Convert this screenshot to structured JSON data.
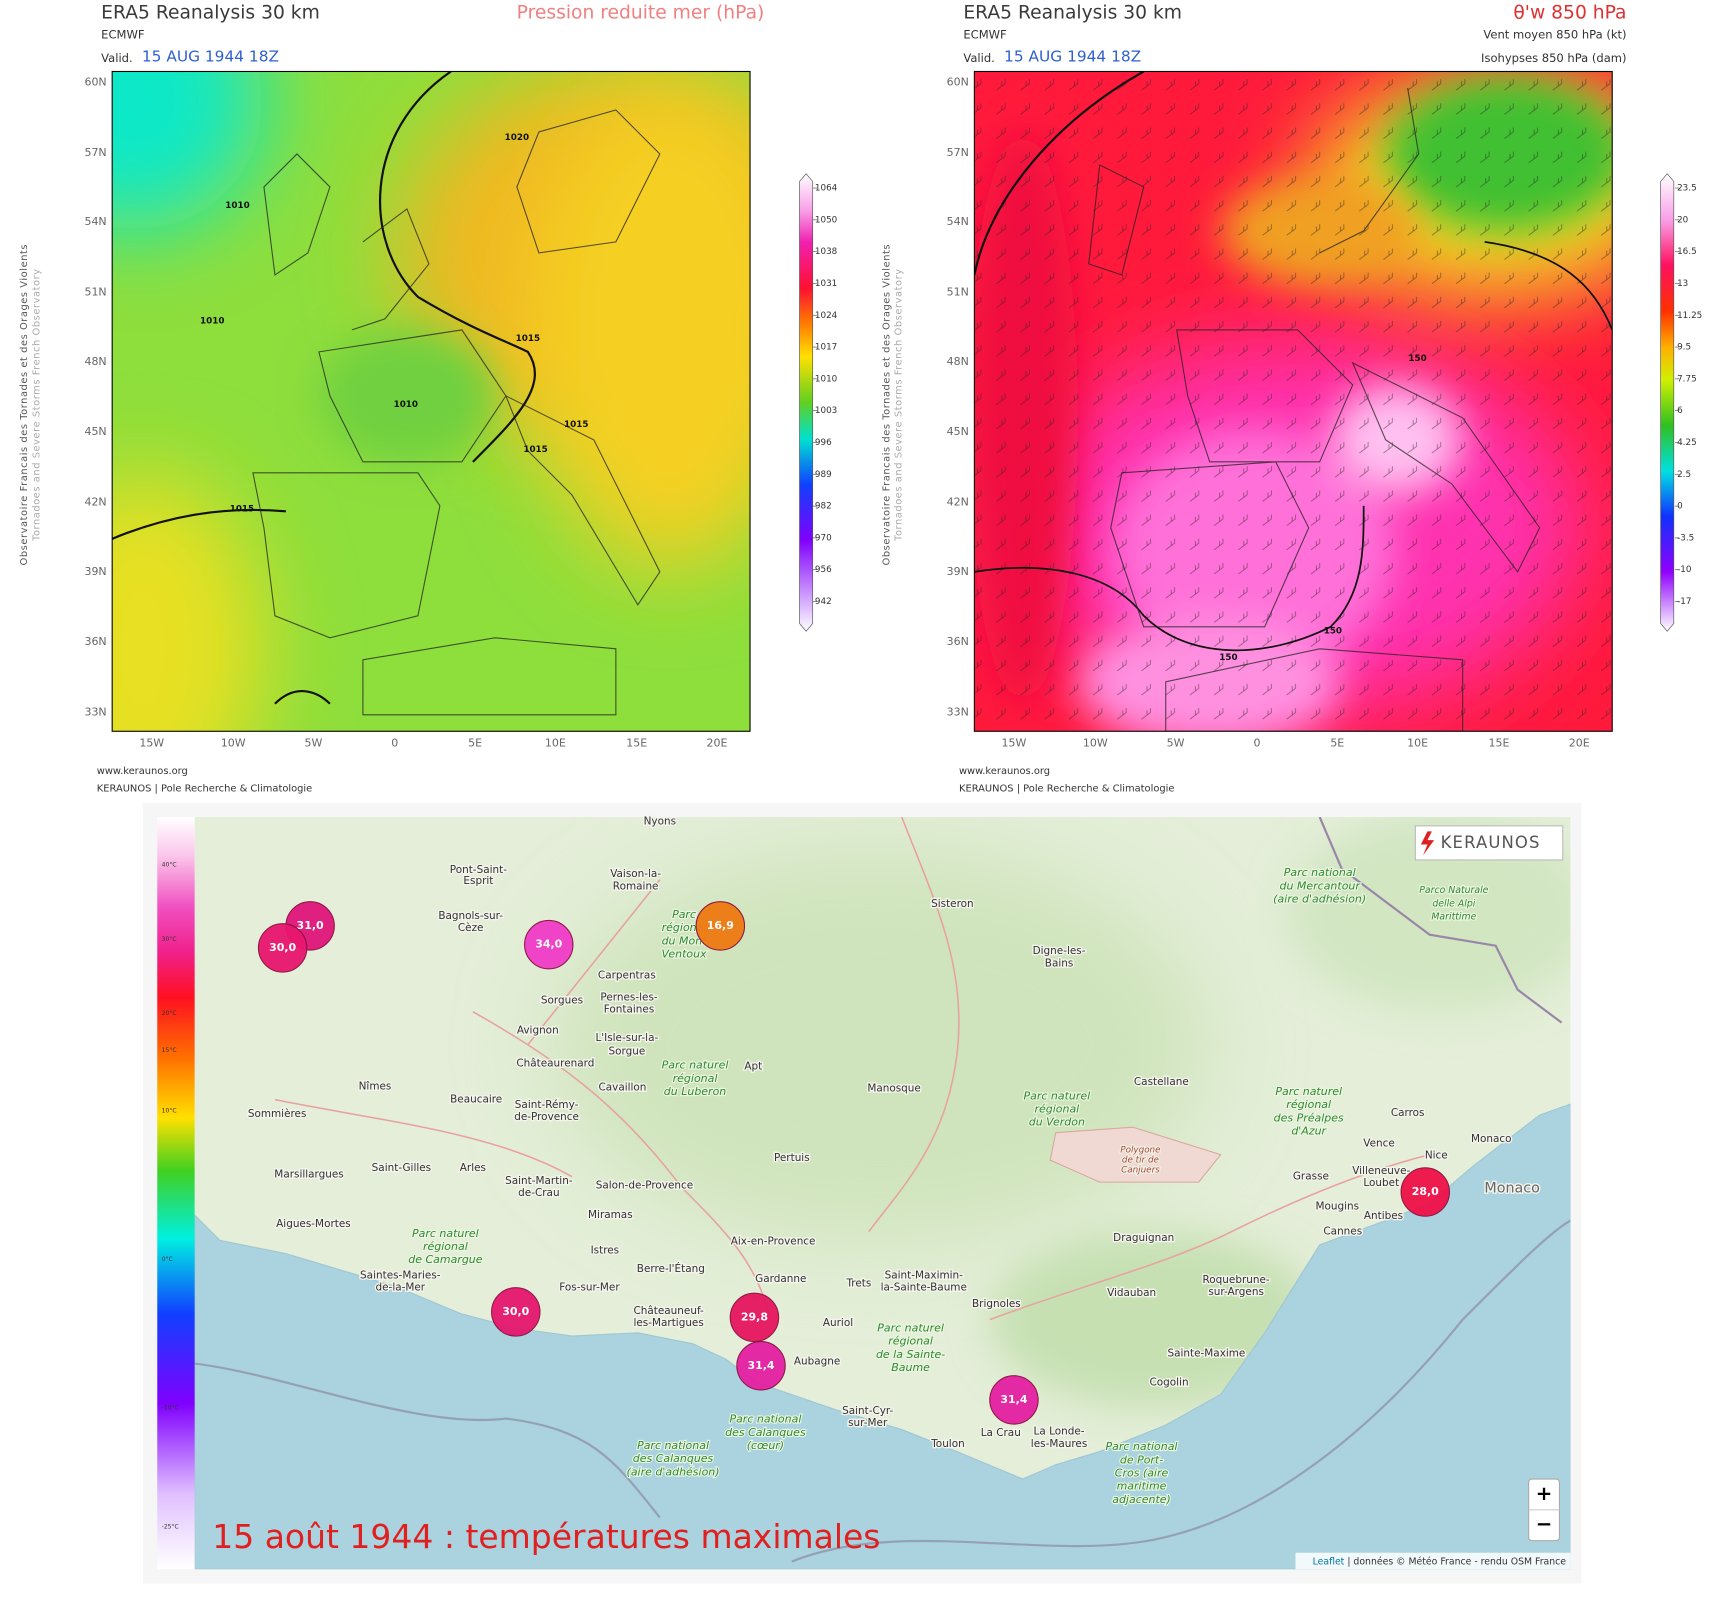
{
  "left_panel": {
    "title": "ERA5 Reanalysis 30 km",
    "field": "Pression reduite mer (hPa)",
    "source": "ECMWF",
    "valid_label": "Valid.",
    "valid_date": "15 AUG 1944 18Z",
    "side_credit": "Observatoire Francais des Tornades et des Orages Violents",
    "side_credit_en": "Tornadoes and Severe Storms French Observatory",
    "lat_labels": [
      "60N",
      "57N",
      "54N",
      "51N",
      "48N",
      "45N",
      "42N",
      "39N",
      "36N",
      "33N"
    ],
    "lon_labels": [
      "15W",
      "10W",
      "5W",
      "0",
      "5E",
      "10E",
      "15E",
      "20E"
    ],
    "colorbar_labels": [
      "1064",
      "1050",
      "1038",
      "1031",
      "1024",
      "1017",
      "1010",
      "1003",
      "996",
      "989",
      "982",
      "970",
      "956",
      "942"
    ],
    "contour_labels": [
      "1020",
      "1010",
      "1010",
      "1015",
      "1010",
      "1015",
      "1015",
      "1015"
    ],
    "footer_url": "www.keraunos.org",
    "footer_org": "KERAUNOS | Pole Recherche & Climatologie"
  },
  "right_panel": {
    "title": "ERA5 Reanalysis 30 km",
    "field": "θ'w 850 hPa",
    "source": "ECMWF",
    "valid_label": "Valid.",
    "valid_date": "15 AUG 1944 18Z",
    "subtitle_1": "Vent moyen 850 hPa (kt)",
    "subtitle_2": "Isohypses 850 hPa (dam)",
    "side_credit": "Observatoire Francais des Tornades et des Orages Violents",
    "side_credit_en": "Tornadoes and Severe Storms French Observatory",
    "lat_labels": [
      "60N",
      "57N",
      "54N",
      "51N",
      "48N",
      "45N",
      "42N",
      "39N",
      "36N",
      "33N"
    ],
    "lon_labels": [
      "15W",
      "10W",
      "5W",
      "0",
      "5E",
      "10E",
      "15E",
      "20E"
    ],
    "colorbar_labels": [
      "23.5",
      "20",
      "16.5",
      "13",
      "11.25",
      "9.5",
      "7.75",
      "6",
      "4.25",
      "2.5",
      "0",
      "-3.5",
      "-10",
      "-17"
    ],
    "contour_labels": [
      "150",
      "150",
      "150"
    ],
    "footer_url": "www.keraunos.org",
    "footer_org": "KERAUNOS | Pole Recherche & Climatologie"
  },
  "map": {
    "title": "15 août 1944 : températures maximales",
    "logo": "KERAUNOS",
    "zoom_in": "+",
    "zoom_out": "−",
    "attribution_link": "Leaflet",
    "attribution_text": " | données © Météo France - rendu OSM France",
    "colorbar_labels": [
      "40°C",
      "30°C",
      "20°C",
      "15°C",
      "10°C",
      "0°C",
      "-10°C",
      "-25°C"
    ],
    "markers": [
      {
        "label": "31,0",
        "color": "#e0157a"
      },
      {
        "label": "30,0",
        "color": "#e8166e"
      },
      {
        "label": "34,0",
        "color": "#f03cc8"
      },
      {
        "label": "16,9",
        "color": "#ef7a12"
      },
      {
        "label": "30,0",
        "color": "#e6176e"
      },
      {
        "label": "29,8",
        "color": "#e6155e"
      },
      {
        "label": "31,4",
        "color": "#e41fa2"
      },
      {
        "label": "31,4",
        "color": "#e41fa2"
      },
      {
        "label": "28,0",
        "color": "#ef1048"
      }
    ],
    "places": [
      "Nyons",
      "Pont-Saint-",
      "Esprit",
      "Vaison-la-",
      "Romaine",
      "Bagnols-sur-",
      "Cèze",
      "Sisteron",
      "Digne-les-",
      "Bains",
      "Carpentras",
      "Pernes-les-",
      "Fontaines",
      "Sorgues",
      "Avignon",
      "L'Isle-sur-la-",
      "Sorgue",
      "Châteaurenard",
      "Apt",
      "Nîmes",
      "Beaucaire",
      "Saint-Rémy-",
      "de-Provence",
      "Cavaillon",
      "Manosque",
      "Castellane",
      "Sommières",
      "Carros",
      "Monaco",
      "Vence",
      "Nice",
      "Pertuis",
      "Saint-Gilles",
      "Marsillargues",
      "Arles",
      "Villeneuve-",
      "Loubet",
      "Grasse",
      "Saint-Martin-",
      "de-Crau",
      "Salon-de-Provence",
      "Mougins",
      "Antibes",
      "Aigues-Mortes",
      "Miramas",
      "Cannes",
      "Aix-en-Provence",
      "Istres",
      "Draguignan",
      "Berre-l'Étang",
      "Gardanne",
      "Trets",
      "Saint-Maximin-",
      "la-Sainte-Baume",
      "Vidauban",
      "Roquebrune-",
      "sur-Argens",
      "Fos-sur-Mer",
      "Brignoles",
      "Châteauneuf-",
      "les-Martigues",
      "Auriol",
      "Aubagne",
      "Sainte-Maxime",
      "Cogolin",
      "Saint-Cyr-",
      "sur-Mer",
      "Toulon",
      "La Crau",
      "La Londe-",
      "les-Maures",
      "Saintes-Maries-",
      "de-la-Mer",
      "Monaco"
    ],
    "parks": [
      [
        "Parc national",
        "du Mercantour",
        "(aire d'adhésion)"
      ],
      [
        "Parco Naturale",
        "delle Alpi",
        "Marittime"
      ],
      [
        "Parc",
        "régional",
        "du Mont",
        "Ventoux"
      ],
      [
        "Parc naturel",
        "régional",
        "du Luberon"
      ],
      [
        "Parc naturel",
        "régional",
        "du Verdon"
      ],
      [
        "Parc naturel",
        "régional",
        "des Préalpes",
        "d'Azur"
      ],
      [
        "Polygone",
        "de tir de",
        "Canjuers"
      ],
      [
        "Parc naturel",
        "régional",
        "de Camargue"
      ],
      [
        "Parc naturel",
        "régional",
        "de la Sainte-",
        "Baume"
      ],
      [
        "Parc national",
        "des Calanques",
        "(cœur)"
      ],
      [
        "Parc national",
        "des Calanques",
        "(aire d'adhésion)"
      ],
      [
        "Parc national",
        "de Port-",
        "Cros (aire",
        "maritime",
        "adjacente)"
      ]
    ]
  }
}
